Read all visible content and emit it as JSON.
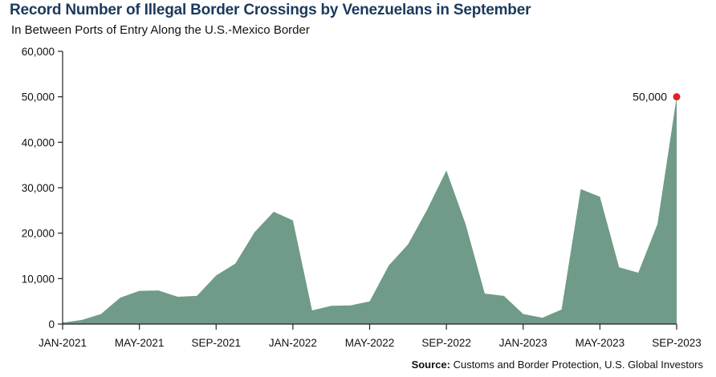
{
  "title": "Record Number of Illegal Border Crossings by Venezuelans in September",
  "subtitle": "In Between Ports of Entry Along the U.S.-Mexico Border",
  "source": {
    "prefix": "Source:",
    "text": " Customs and Border Protection, U.S. Global Investors"
  },
  "colors": {
    "area": "#6f9b88",
    "highlight": "#e02228",
    "axis": "#222222"
  },
  "chart_data": {
    "type": "area",
    "title": "Record Number of Illegal Border Crossings by Venezuelans in September",
    "subtitle": "In Between Ports of Entry Along the U.S.-Mexico Border",
    "ylim": [
      0,
      60000
    ],
    "y_ticks": [
      "0",
      "10,000",
      "20,000",
      "30,000",
      "40,000",
      "50,000",
      "60,000"
    ],
    "x_ticks": [
      "JAN-2021",
      "MAY-2021",
      "SEP-2021",
      "JAN-2022",
      "MAY-2022",
      "SEP-2022",
      "JAN-2023",
      "MAY-2023",
      "SEP-2023"
    ],
    "x": [
      "JAN-2021",
      "FEB-2021",
      "MAR-2021",
      "APR-2021",
      "MAY-2021",
      "JUN-2021",
      "JUL-2021",
      "AUG-2021",
      "SEP-2021",
      "OCT-2021",
      "NOV-2021",
      "DEC-2021",
      "JAN-2022",
      "FEB-2022",
      "MAR-2022",
      "APR-2022",
      "MAY-2022",
      "JUN-2022",
      "JUL-2022",
      "AUG-2022",
      "SEP-2022",
      "OCT-2022",
      "NOV-2022",
      "DEC-2022",
      "JAN-2023",
      "FEB-2023",
      "MAR-2023",
      "APR-2023",
      "MAY-2023",
      "JUN-2023",
      "JUL-2023",
      "AUG-2023",
      "SEP-2023"
    ],
    "series": [
      {
        "values": [
          300,
          900,
          2200,
          5800,
          7300,
          7400,
          6000,
          6200,
          10700,
          13300,
          20200,
          24700,
          22800,
          3000,
          4000,
          4100,
          5000,
          12900,
          17500,
          25200,
          33800,
          22000,
          6700,
          6200,
          2200,
          1400,
          3200,
          29700,
          28000,
          12500,
          11300,
          22000,
          50000
        ]
      }
    ],
    "annotations": [
      {
        "x": "SEP-2023",
        "y": 50000,
        "label": "50,000"
      }
    ],
    "grid": false,
    "legend": "none"
  }
}
